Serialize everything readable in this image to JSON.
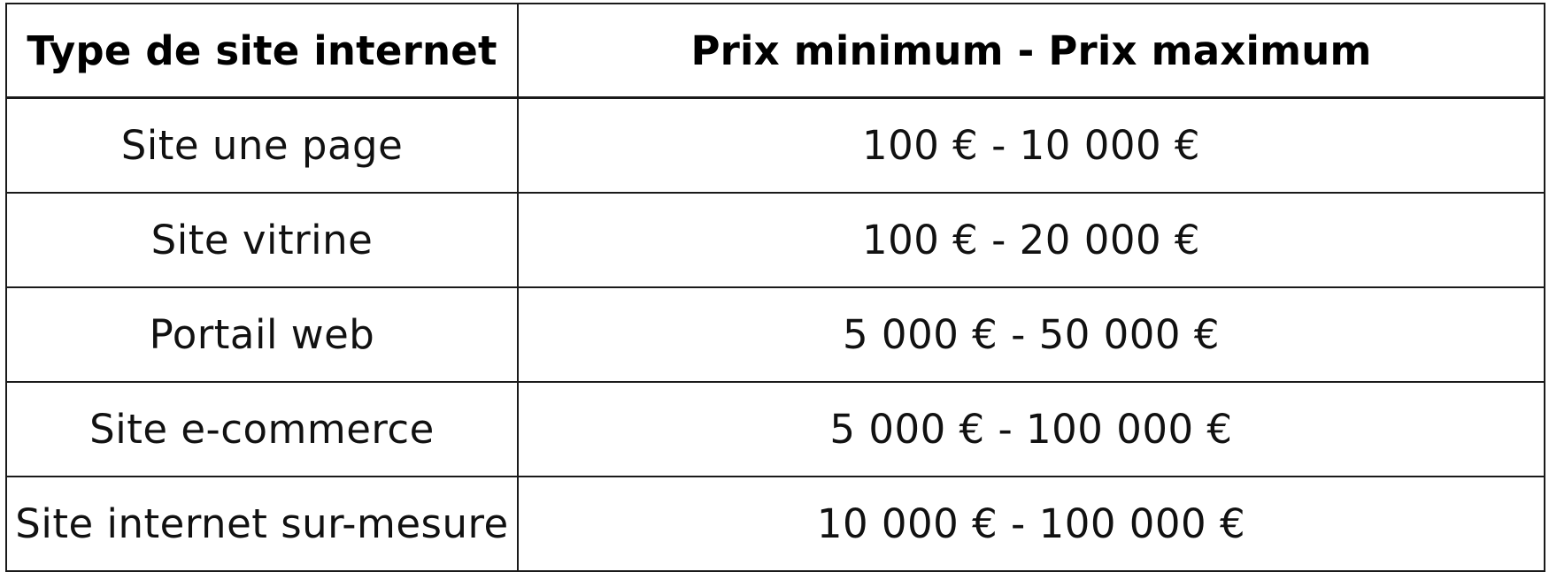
{
  "table": {
    "headers": {
      "type": "Type de site internet",
      "price": "Prix minimum - Prix maximum"
    },
    "rows": [
      {
        "type": "Site une page",
        "price": "100 € - 10 000 €"
      },
      {
        "type": "Site vitrine",
        "price": "100 € - 20 000 €"
      },
      {
        "type": "Portail web",
        "price": "5 000 € - 50 000 €"
      },
      {
        "type": "Site e-commerce",
        "price": "5 000 € - 100 000 €"
      },
      {
        "type": "Site internet sur-mesure",
        "price": "10 000 € - 100 000 €"
      }
    ]
  }
}
